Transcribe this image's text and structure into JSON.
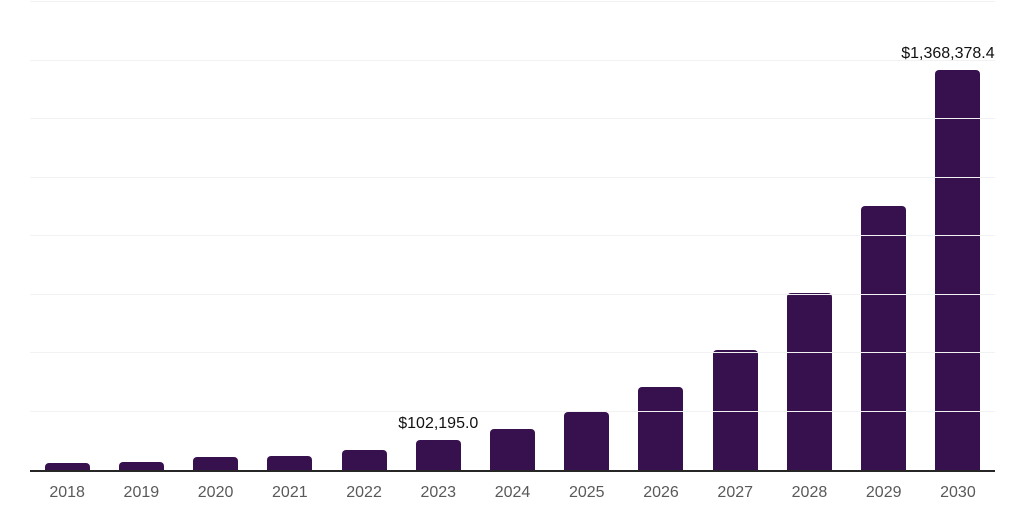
{
  "chart_data": {
    "type": "bar",
    "title": "",
    "xlabel": "",
    "ylabel": "",
    "categories": [
      "2018",
      "2019",
      "2020",
      "2021",
      "2022",
      "2023",
      "2024",
      "2025",
      "2026",
      "2027",
      "2028",
      "2029",
      "2030"
    ],
    "values": [
      24000,
      26500,
      46000,
      48500,
      69500,
      102195.0,
      139000,
      197500,
      283000,
      410000,
      604000,
      903000,
      1368378.4
    ],
    "value_labels": {
      "2023": "$102,195.0",
      "2030": "$1,368,378.4"
    },
    "ylim": [
      0,
      1600000
    ],
    "gridline_step": 200000,
    "grid": "horizontal-only",
    "legend": "none",
    "y_tick_labels_shown": false,
    "colors": {
      "bar": "#37114d",
      "axis_line": "#262626",
      "gridline": "#f2f2f2",
      "tick_label": "#595959",
      "data_label": "#111111",
      "background": "#ffffff"
    }
  }
}
